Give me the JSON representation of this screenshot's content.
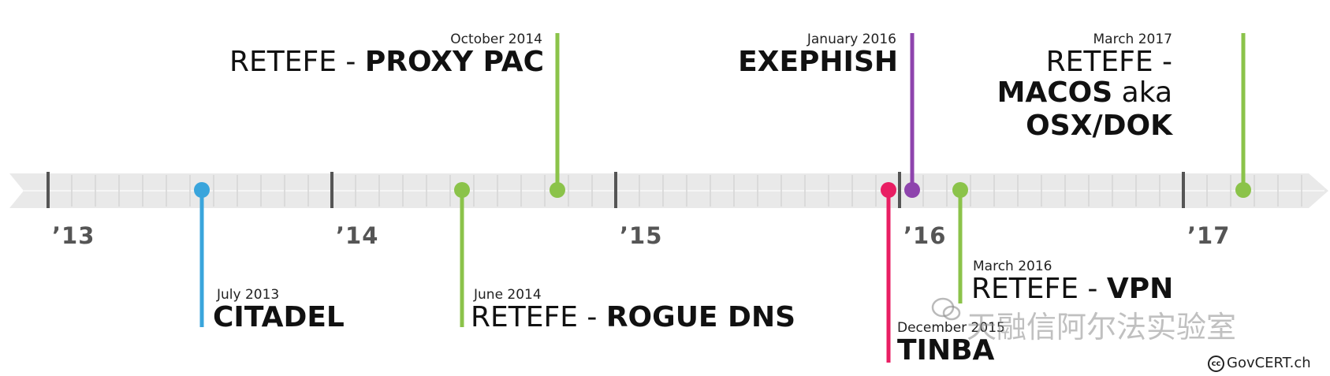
{
  "years": [
    "’13",
    "’14",
    "’15",
    "’16",
    "’17"
  ],
  "events": [
    {
      "id": "citadel",
      "date": "July 2013",
      "prefix": "",
      "name": "CITADEL",
      "color": "#3aa5dc"
    },
    {
      "id": "rogue-dns",
      "date": "June 2014",
      "prefix": "RETEFE - ",
      "name": "ROGUE DNS",
      "color": "#8bc34a"
    },
    {
      "id": "proxy-pac",
      "date": "October 2014",
      "prefix": "RETEFE - ",
      "name": "PROXY PAC",
      "color": "#8bc34a"
    },
    {
      "id": "tinba",
      "date": "December 2015",
      "prefix": "",
      "name": "TINBA",
      "color": "#e91e63"
    },
    {
      "id": "exephish",
      "date": "January 2016",
      "prefix": "",
      "name": "EXEPHISH",
      "color": "#8e44ad"
    },
    {
      "id": "vpn",
      "date": "March 2016",
      "prefix": "RETEFE - ",
      "name": "VPN",
      "color": "#8bc34a"
    },
    {
      "id": "macos",
      "date": "March 2017",
      "line1": "RETEFE -",
      "line2_bold": "MACOS",
      "line2_light": " aka",
      "line3": "OSX/DOK",
      "color": "#8bc34a"
    }
  ],
  "watermark": "天融信阿尔法实验室",
  "credit": "GovCERT.ch",
  "credit_icon": "cc-icon"
}
